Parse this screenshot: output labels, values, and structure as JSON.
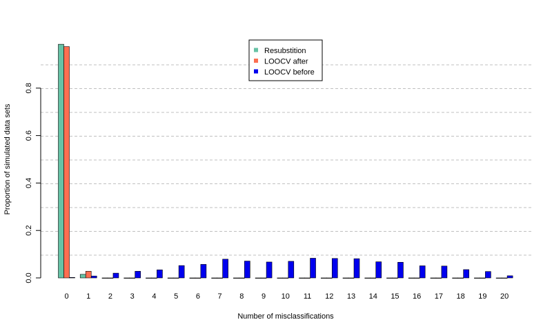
{
  "chart_data": {
    "type": "bar",
    "title": "",
    "xlabel": "Number of misclassifications",
    "ylabel": "Proportion of simulated data sets",
    "categories": [
      "0",
      "1",
      "2",
      "3",
      "4",
      "5",
      "6",
      "7",
      "8",
      "9",
      "10",
      "11",
      "12",
      "13",
      "14",
      "15",
      "16",
      "17",
      "18",
      "19",
      "20"
    ],
    "yticks": [
      "0.0",
      "0.2",
      "0.4",
      "0.6",
      "0.8"
    ],
    "ylim": [
      0,
      1
    ],
    "grid": "horizontal dashed",
    "legend_position": "top-center",
    "series": [
      {
        "name": "Resubstition",
        "color": "#66c2a5",
        "values": [
          0.985,
          0.015,
          0,
          0,
          0,
          0,
          0,
          0,
          0,
          0,
          0,
          0,
          0,
          0,
          0,
          0,
          0,
          0,
          0,
          0,
          0
        ]
      },
      {
        "name": "LOOCV after",
        "color": "#fc6e51",
        "values": [
          0.975,
          0.028,
          0,
          0,
          0,
          0,
          0,
          0,
          0,
          0,
          0,
          0,
          0,
          0,
          0,
          0,
          0,
          0,
          0,
          0,
          0
        ]
      },
      {
        "name": "LOOCV before",
        "color": "#0000ee",
        "values": [
          0.002,
          0.008,
          0.02,
          0.028,
          0.034,
          0.052,
          0.057,
          0.079,
          0.071,
          0.067,
          0.07,
          0.083,
          0.082,
          0.081,
          0.068,
          0.066,
          0.051,
          0.05,
          0.035,
          0.027,
          0.009
        ]
      }
    ]
  }
}
